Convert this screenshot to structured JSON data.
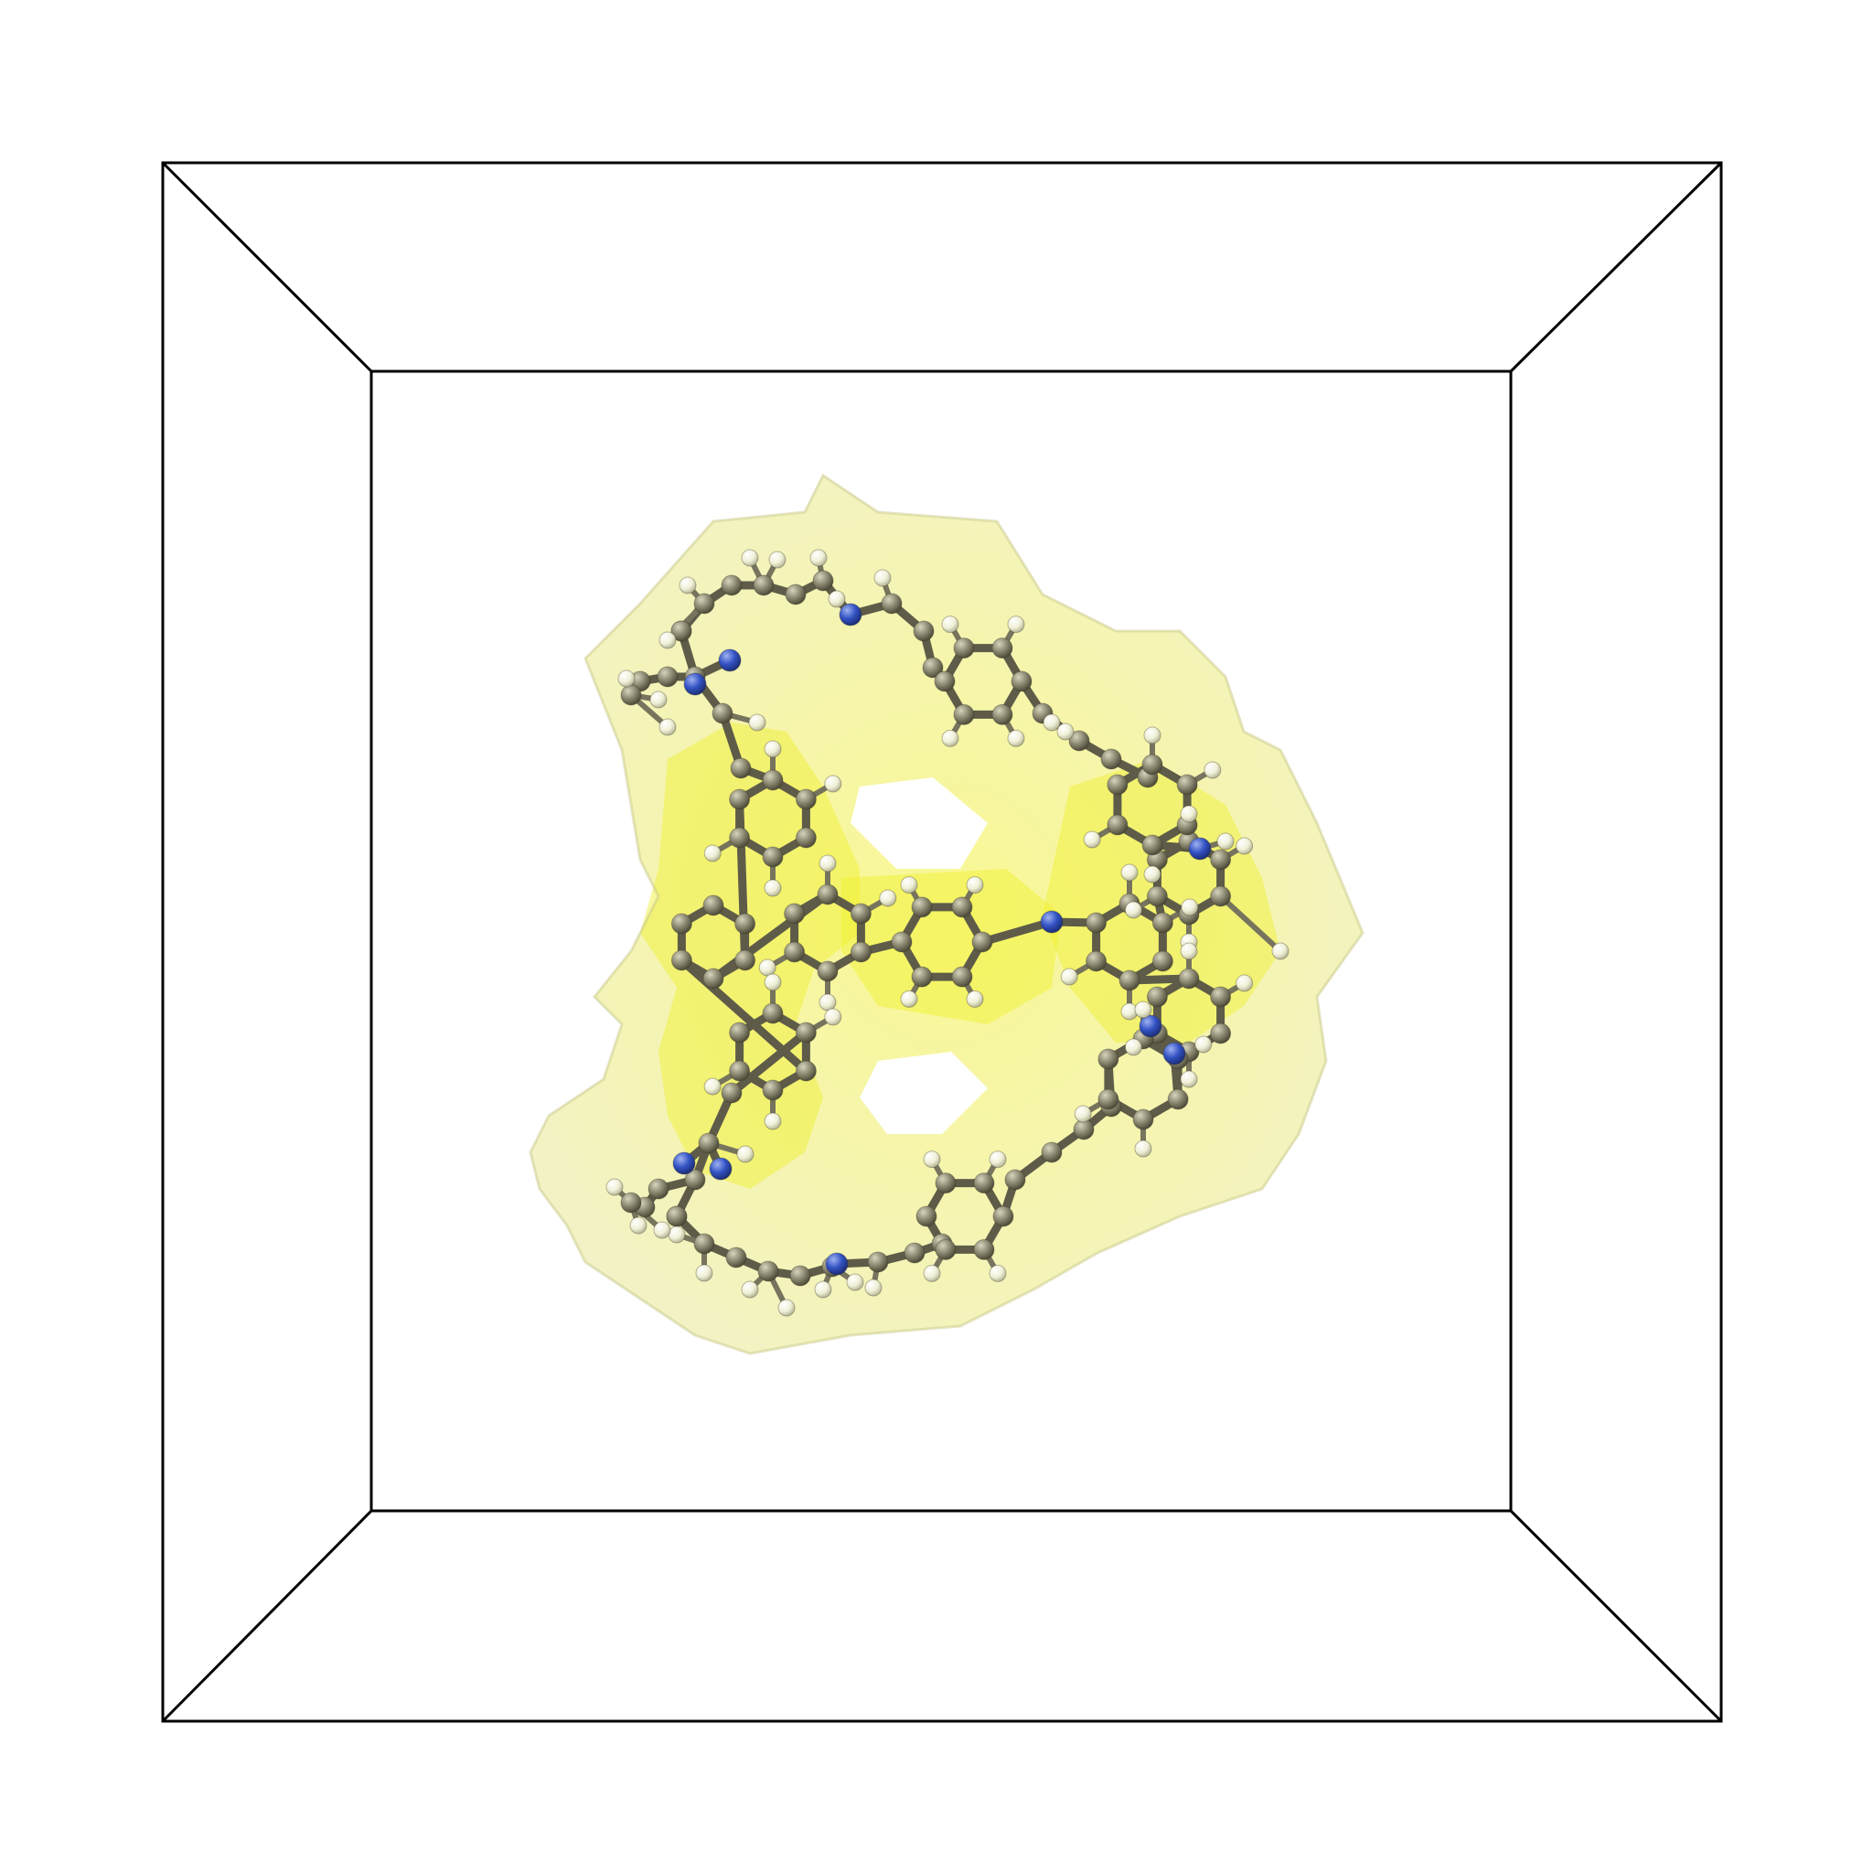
{
  "scene": {
    "description_type": "molecular-structure-render",
    "colors": {
      "background": "#ffffff",
      "cell_box": "#000000",
      "isosurface": "#eeee44",
      "isosurface_core": "#f3f028",
      "carbon": "#8a8870",
      "hydrogen": "#f2f2dc",
      "nitrogen": "#3353c4",
      "bond": "#5e5c48"
    },
    "atom_types": [
      "carbon",
      "hydrogen",
      "nitrogen"
    ]
  }
}
